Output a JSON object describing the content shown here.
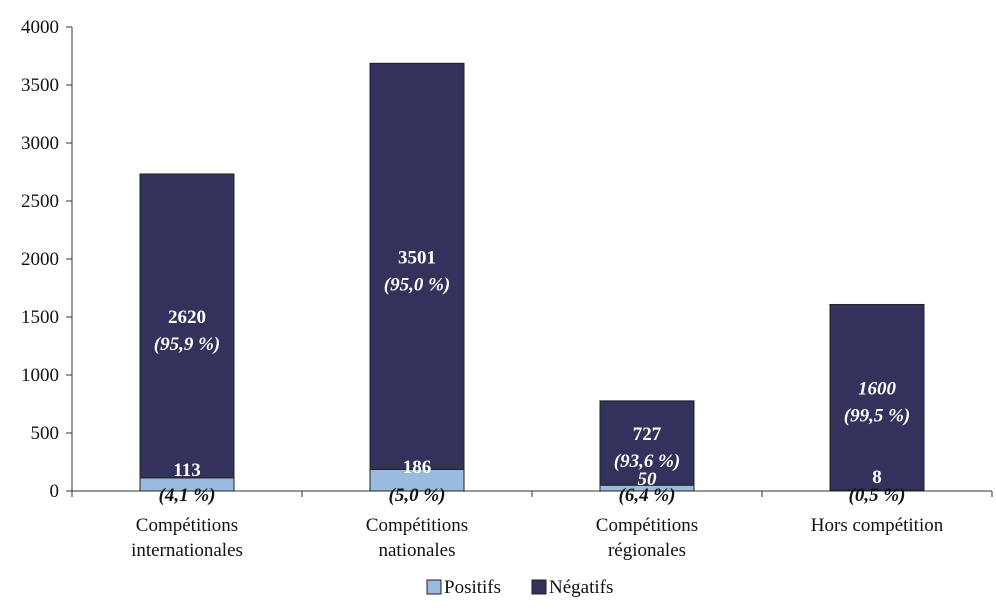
{
  "chart_data": {
    "type": "bar",
    "stacked": true,
    "categories": [
      [
        "Compétitions",
        "internationales"
      ],
      [
        "Compétitions",
        "nationales"
      ],
      [
        "Compétitions",
        "régionales"
      ],
      [
        "Hors compétition"
      ]
    ],
    "series": [
      {
        "name": "Positifs",
        "color": "#99bbe0",
        "values": [
          113,
          186,
          50,
          8
        ],
        "value_labels": [
          "113",
          "186",
          "50",
          "8"
        ],
        "pct_labels": [
          "(4,1 %)",
          "(5,0 %)",
          "(6,4 %)",
          "(0,5 %)"
        ]
      },
      {
        "name": "Négatifs",
        "color": "#32325c",
        "values": [
          2620,
          3501,
          727,
          1600
        ],
        "value_labels": [
          "2620",
          "3501",
          "727",
          "1600"
        ],
        "pct_labels": [
          "(95,9 %)",
          "(95,0 %)",
          "(93,6 %)",
          "(99,5 %)"
        ]
      }
    ],
    "ylim": [
      0,
      4000
    ],
    "yticks": [
      "0",
      "500",
      "1000",
      "1500",
      "2000",
      "2500",
      "3000",
      "3500",
      "4000"
    ],
    "legend_position": "bottom",
    "grid": false
  }
}
